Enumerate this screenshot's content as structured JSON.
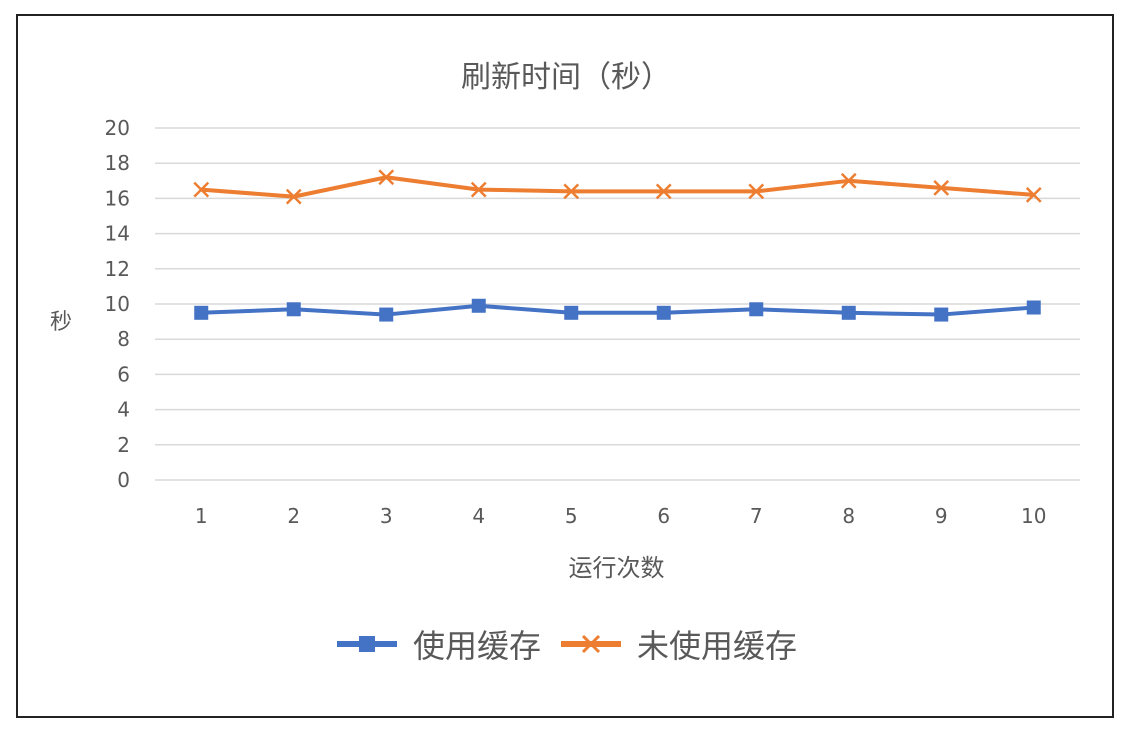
{
  "colors": {
    "series_1": "#4472C4",
    "series_2": "#ED7D31",
    "grid": "#D9D9D9",
    "text": "#595959"
  },
  "chart_data": {
    "type": "line",
    "title": "刷新时间（秒）",
    "xlabel": "运行次数",
    "ylabel": "秒",
    "categories": [
      "1",
      "2",
      "3",
      "4",
      "5",
      "6",
      "7",
      "8",
      "9",
      "10"
    ],
    "y_ticks": [
      "0",
      "2",
      "4",
      "6",
      "8",
      "10",
      "12",
      "14",
      "16",
      "18",
      "20"
    ],
    "ylim": [
      0,
      20
    ],
    "grid": "horizontal",
    "legend_position": "bottom",
    "series": [
      {
        "name": "使用缓存",
        "marker": "square",
        "color": "#4472C4",
        "values": [
          9.5,
          9.7,
          9.4,
          9.9,
          9.5,
          9.5,
          9.7,
          9.5,
          9.4,
          9.8
        ]
      },
      {
        "name": "未使用缓存",
        "marker": "x",
        "color": "#ED7D31",
        "values": [
          16.5,
          16.1,
          17.2,
          16.5,
          16.4,
          16.4,
          16.4,
          17.0,
          16.6,
          16.2
        ]
      }
    ]
  }
}
